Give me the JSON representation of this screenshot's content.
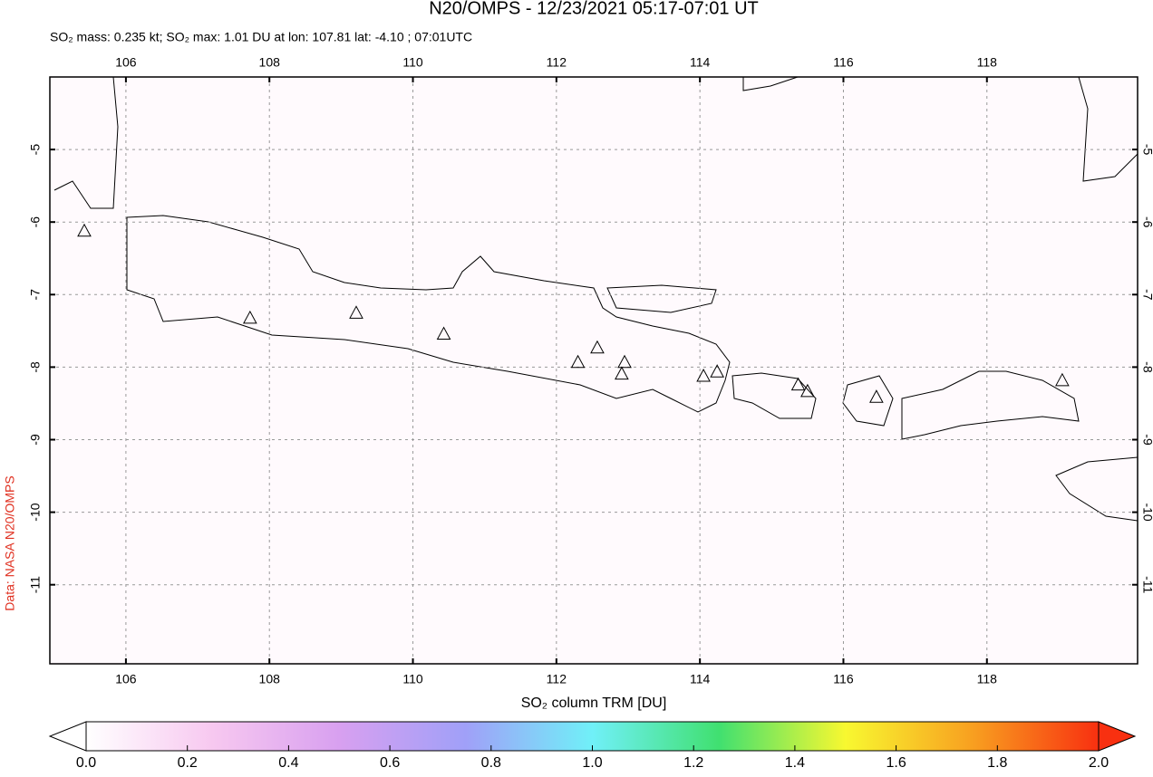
{
  "title": "N20/OMPS - 12/23/2021 05:17-07:01 UT",
  "subtitle": "SO₂ mass: 0.235 kt; SO₂ max: 1.01 DU at lon: 107.81 lat: -4.10 ; 07:01UTC",
  "credit": "Data: NASA N20/OMPS",
  "map": {
    "xlim": [
      104.94,
      120.1
    ],
    "ylim": [
      -12.09,
      -4.0
    ],
    "xticks": [
      106,
      108,
      110,
      112,
      114,
      116,
      118
    ],
    "yticks": [
      -5,
      -6,
      -7,
      -8,
      -9,
      -10,
      -11
    ],
    "volcanoes": [
      {
        "lon": 105.42,
        "lat": -6.12
      },
      {
        "lon": 107.73,
        "lat": -7.32
      },
      {
        "lon": 109.21,
        "lat": -7.25
      },
      {
        "lon": 110.43,
        "lat": -7.54
      },
      {
        "lon": 112.3,
        "lat": -7.93
      },
      {
        "lon": 112.57,
        "lat": -7.73
      },
      {
        "lon": 112.95,
        "lat": -7.93
      },
      {
        "lon": 112.91,
        "lat": -8.09
      },
      {
        "lon": 114.05,
        "lat": -8.12
      },
      {
        "lon": 114.24,
        "lat": -8.06
      },
      {
        "lon": 115.37,
        "lat": -8.24
      },
      {
        "lon": 115.5,
        "lat": -8.33
      },
      {
        "lon": 116.46,
        "lat": -8.41
      },
      {
        "lon": 119.05,
        "lat": -8.18
      }
    ]
  },
  "colorbar": {
    "label": "SO₂ column TRM [DU]",
    "lim": [
      0,
      2
    ],
    "ticks": [
      {
        "value": 0,
        "label": "0.0"
      },
      0.2,
      0.4,
      0.6,
      0.8,
      {
        "value": 1,
        "label": "1.0"
      },
      1.2,
      1.4,
      1.6,
      1.8,
      {
        "value": 2,
        "label": "2.0"
      }
    ],
    "colors": [
      "#ffffff",
      "#f7c8f0",
      "#d8a0f0",
      "#a0a0f8",
      "#70f0f8",
      "#40e070",
      "#f8f830",
      "#f8a020",
      "#f83010"
    ]
  }
}
